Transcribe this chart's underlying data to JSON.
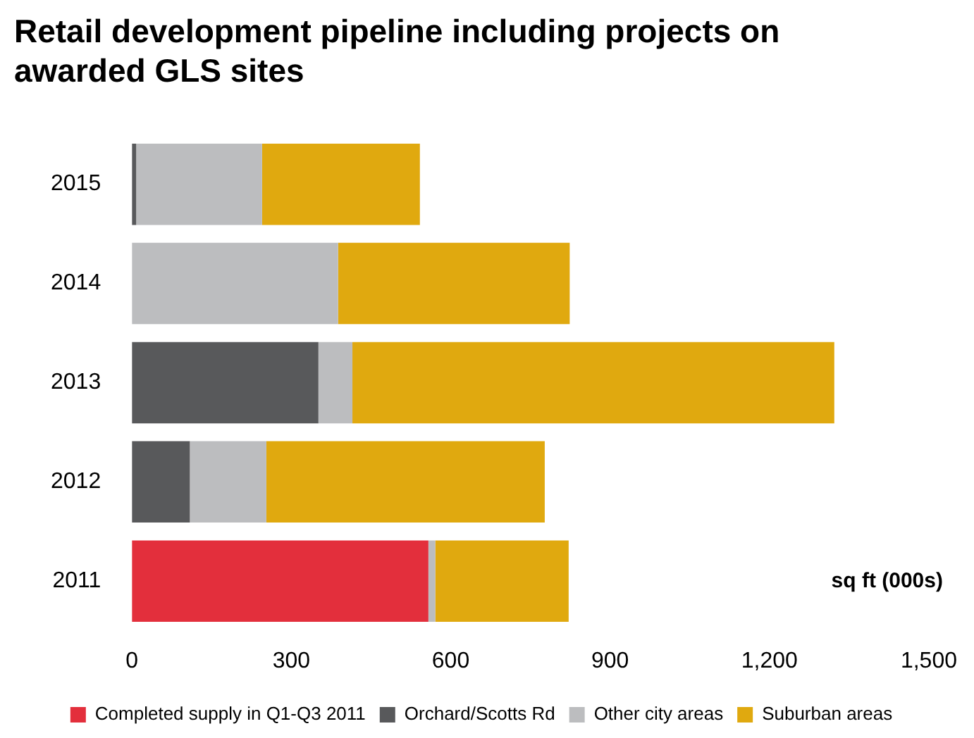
{
  "chart_data": {
    "type": "bar",
    "orientation": "horizontal",
    "stacked": true,
    "title": "Retail development pipeline including projects on awarded GLS sites",
    "xlabel": "sq ft (000s)",
    "categories": [
      "2015",
      "2014",
      "2013",
      "2012",
      "2011"
    ],
    "series": [
      {
        "name": "Completed supply in Q1-Q3 2011",
        "color": "#e32f3c",
        "values": [
          0,
          0,
          0,
          0,
          558
        ]
      },
      {
        "name": "Orchard/Scotts Rd",
        "color": "#58595b",
        "values": [
          8,
          0,
          351,
          109,
          0
        ]
      },
      {
        "name": "Other city areas",
        "color": "#bcbdbf",
        "values": [
          237,
          388,
          64,
          144,
          13
        ]
      },
      {
        "name": "Suburban areas",
        "color": "#e0a90f",
        "values": [
          297,
          436,
          907,
          524,
          251
        ]
      }
    ],
    "xlim": [
      0,
      1500
    ],
    "xticks": [
      0,
      300,
      600,
      900,
      {
        "value": 1200,
        "label": "1,200"
      },
      {
        "value": 1500,
        "label": "1,500"
      }
    ],
    "grid": false,
    "legend": "bottom"
  }
}
